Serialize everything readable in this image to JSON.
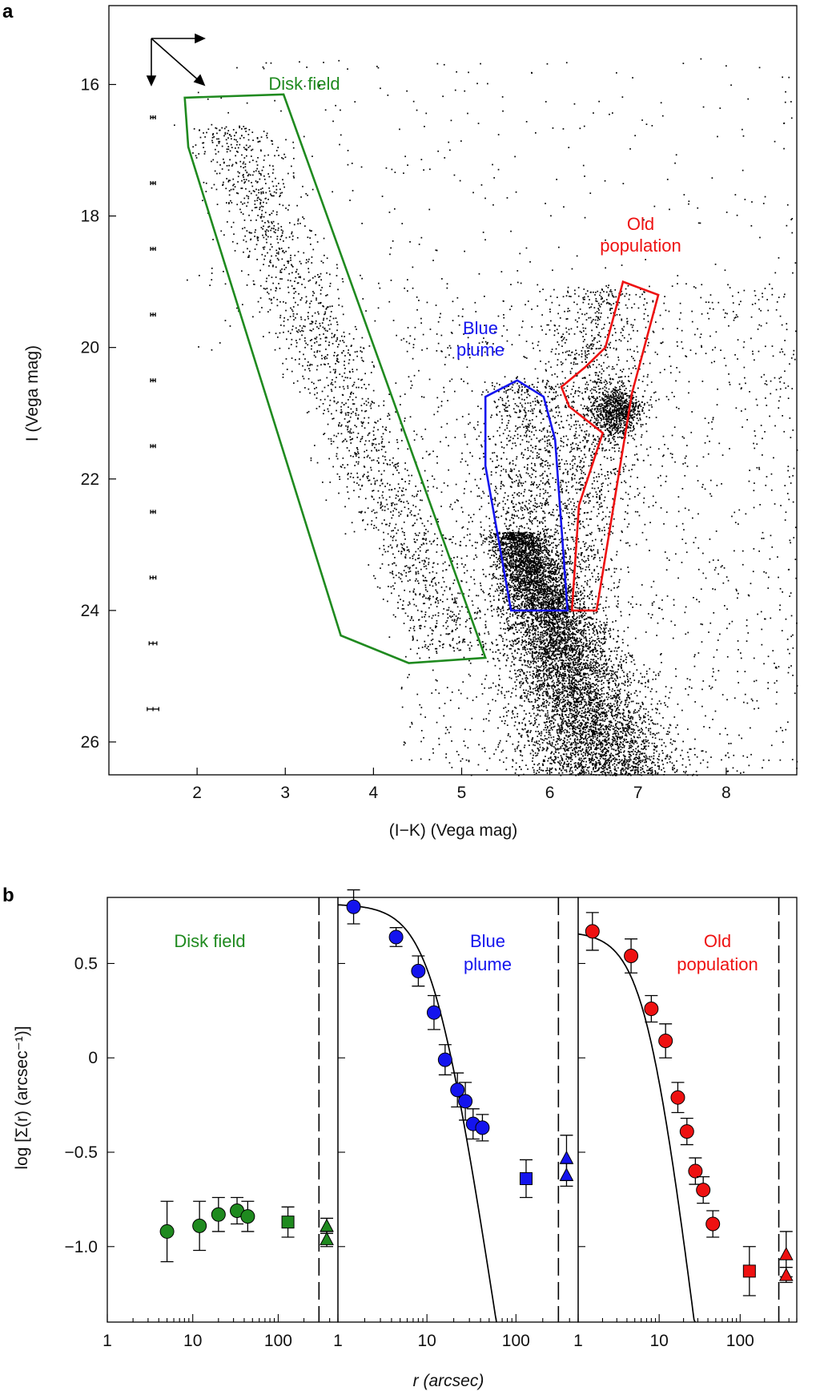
{
  "colors": {
    "disk": "#1f8a1f",
    "blue": "#1414ee",
    "old": "#ee1111",
    "points": "#000000"
  },
  "chart_data": [
    {
      "panel": "a",
      "type": "scatter",
      "xlabel": "(I−K) (Vega mag)",
      "ylabel": "I (Vega mag)",
      "xlim": [
        1.0,
        8.8
      ],
      "ylim": [
        26.5,
        14.8
      ],
      "y_inverted": true,
      "xticks": [
        2,
        3,
        4,
        5,
        6,
        7,
        8
      ],
      "yticks": [
        16,
        18,
        20,
        22,
        24,
        26
      ],
      "error_bars_at_x": 1.5,
      "error_bars": [
        {
          "mag": 16.5,
          "err": 0.02
        },
        {
          "mag": 17.5,
          "err": 0.02
        },
        {
          "mag": 18.5,
          "err": 0.02
        },
        {
          "mag": 19.5,
          "err": 0.02
        },
        {
          "mag": 20.5,
          "err": 0.02
        },
        {
          "mag": 21.5,
          "err": 0.02
        },
        {
          "mag": 22.5,
          "err": 0.02
        },
        {
          "mag": 23.5,
          "err": 0.03
        },
        {
          "mag": 24.5,
          "err": 0.04
        },
        {
          "mag": 25.5,
          "err": 0.06
        }
      ],
      "regions": [
        {
          "label": "Disk field",
          "color": "#1f8a1f",
          "polygon": [
            [
              1.86,
              16.2
            ],
            [
              2.98,
              16.15
            ],
            [
              5.27,
              24.72
            ],
            [
              4.4,
              24.8
            ],
            [
              3.63,
              24.38
            ],
            [
              1.9,
              16.95
            ]
          ]
        },
        {
          "label": "Blue\nplume",
          "color": "#1414ee",
          "polygon": [
            [
              5.27,
              20.75
            ],
            [
              5.63,
              20.5
            ],
            [
              5.93,
              20.75
            ],
            [
              6.06,
              21.4
            ],
            [
              6.2,
              24.0
            ],
            [
              5.56,
              24.0
            ],
            [
              5.27,
              21.8
            ]
          ]
        },
        {
          "label": "Old\npopulation",
          "color": "#ee1111",
          "polygon": [
            [
              6.83,
              19.0
            ],
            [
              7.23,
              19.2
            ],
            [
              6.93,
              20.7
            ],
            [
              6.53,
              24.0
            ],
            [
              6.25,
              24.0
            ],
            [
              6.33,
              22.4
            ],
            [
              6.6,
              21.3
            ],
            [
              6.22,
              20.9
            ],
            [
              6.13,
              20.6
            ],
            [
              6.4,
              20.3
            ],
            [
              6.63,
              20.0
            ]
          ]
        }
      ]
    },
    {
      "panel": "b",
      "type": "scatter",
      "xlabel": "r (arcsec)",
      "ylabel": "log [Σ(r) (arcsec⁻¹)]",
      "xscale": "log",
      "xlim": [
        1,
        500
      ],
      "ylim": [
        -1.4,
        0.85
      ],
      "xticks": [
        1,
        10,
        100
      ],
      "yticks": [
        0.5,
        0,
        -0.5,
        -1.0
      ],
      "ytick_labels": [
        "0.5",
        "0",
        "−0.5",
        "−1.0"
      ],
      "dashed_line_x": 300,
      "subpanels": [
        {
          "label": "Disk field",
          "color": "#1f8a1f",
          "circles": [
            [
              5,
              -0.92,
              0.16
            ],
            [
              12,
              -0.89,
              0.13
            ],
            [
              20,
              -0.83,
              0.09
            ],
            [
              33,
              -0.81,
              0.07
            ],
            [
              44,
              -0.84,
              0.08
            ]
          ],
          "squares": [
            [
              130,
              -0.87,
              0.08
            ]
          ],
          "triangles": [
            [
              370,
              -0.89,
              0.04
            ],
            [
              370,
              -0.96,
              0.04
            ]
          ],
          "fit": null
        },
        {
          "label": "Blue\nplume",
          "color": "#1414ee",
          "circles": [
            [
              1.5,
              0.8,
              0.09
            ],
            [
              4.5,
              0.64,
              0.05
            ],
            [
              8,
              0.46,
              0.08
            ],
            [
              12,
              0.24,
              0.09
            ],
            [
              16,
              -0.01,
              0.08
            ],
            [
              22,
              -0.17,
              0.09
            ],
            [
              27,
              -0.23,
              0.1
            ],
            [
              33,
              -0.35,
              0.08
            ],
            [
              42,
              -0.37,
              0.07
            ]
          ],
          "squares": [
            [
              130,
              -0.64,
              0.1
            ]
          ],
          "triangles": [
            [
              370,
              -0.53,
              0.12
            ],
            [
              370,
              -0.62,
              0.06
            ]
          ],
          "fit": {
            "a": 0.815,
            "rc": 12.5,
            "p": 3.2
          }
        },
        {
          "label": "Old\npopulation",
          "color": "#ee1111",
          "circles": [
            [
              1.5,
              0.67,
              0.1
            ],
            [
              4.5,
              0.54,
              0.09
            ],
            [
              8,
              0.26,
              0.07
            ],
            [
              12,
              0.09,
              0.09
            ],
            [
              17,
              -0.21,
              0.08
            ],
            [
              22,
              -0.39,
              0.07
            ],
            [
              28,
              -0.6,
              0.07
            ],
            [
              35,
              -0.7,
              0.07
            ],
            [
              46,
              -0.88,
              0.07
            ]
          ],
          "squares": [
            [
              130,
              -1.13,
              0.13
            ]
          ],
          "triangles": [
            [
              370,
              -1.04,
              0.12
            ],
            [
              370,
              -1.15,
              0.04
            ]
          ],
          "fit": {
            "a": 0.67,
            "rc": 7.5,
            "p": 3.6
          }
        }
      ]
    }
  ]
}
